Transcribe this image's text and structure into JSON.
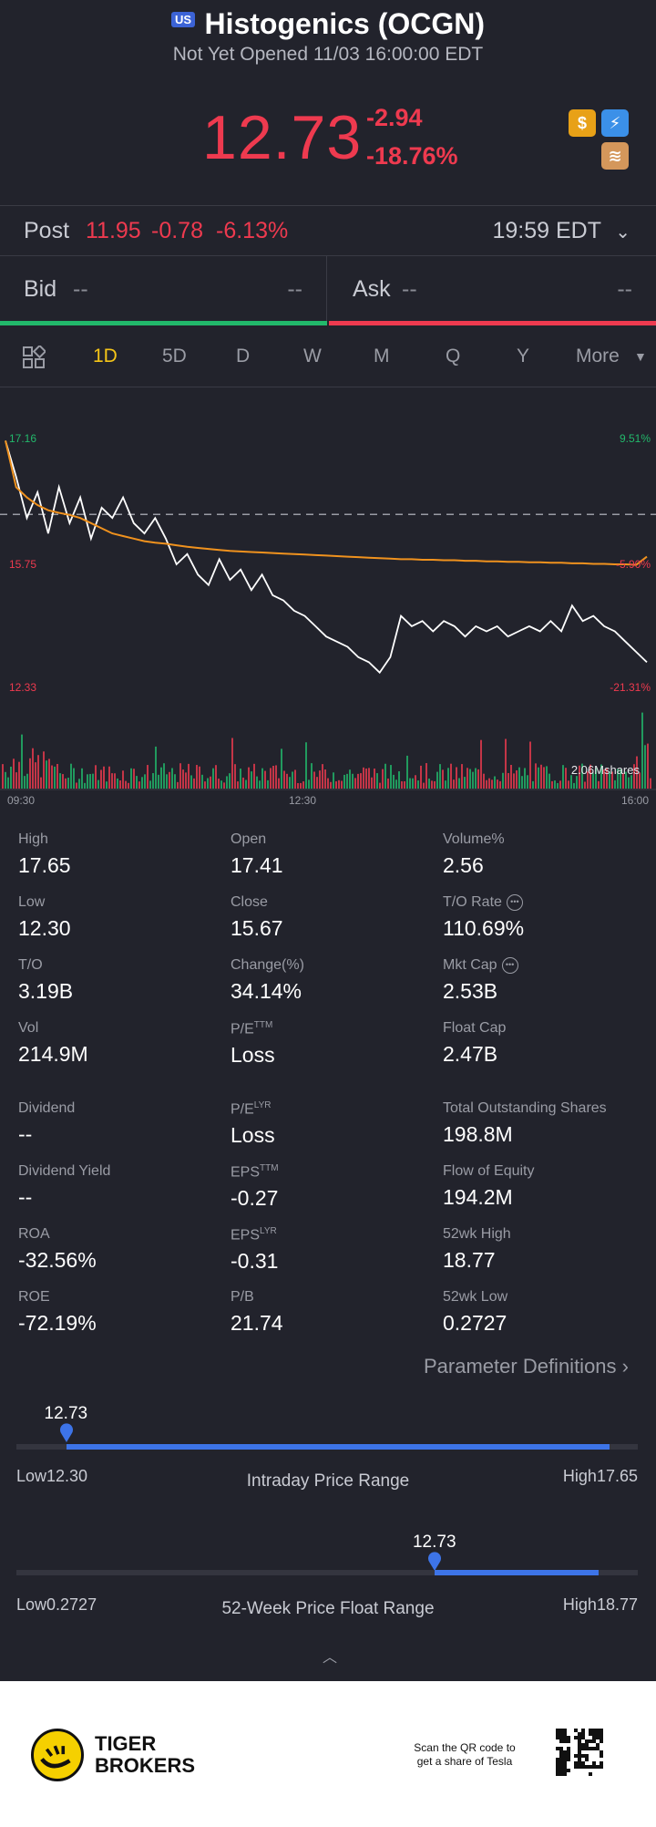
{
  "header": {
    "market_badge": "US",
    "title": "Histogenics (OCGN)",
    "status": "Not Yet Opened 11/03 16:00:00 EDT",
    "price": "12.73",
    "change": "-2.94",
    "change_pct": "-18.76%",
    "colors": {
      "down": "#ee3a4f",
      "up": "#22b86b",
      "accent": "#f5c518"
    }
  },
  "post": {
    "label": "Post",
    "price": "11.95",
    "change": "-0.78",
    "change_pct": "-6.13%",
    "time": "19:59 EDT"
  },
  "bid": {
    "label": "Bid",
    "left": "--",
    "right": "--"
  },
  "ask": {
    "label": "Ask",
    "left": "--",
    "right": "--"
  },
  "tabs": [
    {
      "label": "1D",
      "active": true
    },
    {
      "label": "5D"
    },
    {
      "label": "D"
    },
    {
      "label": "W"
    },
    {
      "label": "M"
    },
    {
      "label": "Q"
    },
    {
      "label": "Y"
    },
    {
      "label": "More"
    }
  ],
  "chart_data": {
    "type": "line",
    "price_high_label": "17.16",
    "price_mid_label": "15.75",
    "price_low_label": "12.33",
    "pct_high_label": "9.51%",
    "pct_mid_label": "-5.90%",
    "pct_low_label": "-21.31%",
    "volume_label": "2.06Mshares",
    "x_ticks": [
      "09:30",
      "12:30",
      "16:00"
    ],
    "prev_close": 15.67,
    "ylim": [
      12.33,
      17.16
    ],
    "series": [
      {
        "values": [
          17.1,
          16.4,
          15.6,
          16.1,
          15.3,
          16.2,
          15.5,
          16.0,
          15.2,
          15.8,
          15.6,
          16.0,
          15.5,
          15.3,
          15.6,
          15.2,
          14.7,
          14.9,
          14.5,
          14.3,
          14.8,
          14.4,
          14.6,
          14.2,
          14.5,
          14.1,
          14.0,
          13.8,
          13.7,
          13.5,
          13.3,
          13.2,
          13.1,
          12.9,
          12.8,
          12.6,
          12.9,
          13.7,
          13.5,
          13.6,
          13.4,
          13.6,
          13.5,
          13.3,
          13.5,
          13.4,
          13.5,
          13.3,
          13.4,
          13.5,
          13.4,
          13.6,
          13.4,
          13.9,
          13.6,
          13.7,
          13.5,
          13.4,
          13.2,
          13.0,
          12.8
        ]
      },
      {
        "values": [
          17.1,
          16.2,
          16.0,
          15.85,
          15.75,
          15.7,
          15.66,
          15.6,
          15.5,
          15.4,
          15.3,
          15.25,
          15.2,
          15.15,
          15.12,
          15.1,
          15.07,
          15.04,
          15.02,
          15.0,
          14.98,
          14.96,
          14.95,
          14.94,
          14.93,
          14.92,
          14.91,
          14.9,
          14.89,
          14.88,
          14.87,
          14.86,
          14.85,
          14.84,
          14.83,
          14.82,
          14.81,
          14.8,
          14.8,
          14.79,
          14.79,
          14.78,
          14.78,
          14.77,
          14.77,
          14.76,
          14.76,
          14.75,
          14.75,
          14.74,
          14.74,
          14.73,
          14.73,
          14.72,
          14.72,
          14.71,
          14.71,
          14.7,
          14.7,
          14.69,
          14.85
        ]
      }
    ]
  },
  "stats": {
    "high": {
      "label": "High",
      "value": "17.65"
    },
    "open": {
      "label": "Open",
      "value": "17.41"
    },
    "volume_pct": {
      "label": "Volume%",
      "value": "2.56"
    },
    "low": {
      "label": "Low",
      "value": "12.30"
    },
    "close": {
      "label": "Close",
      "value": "15.67"
    },
    "to_rate": {
      "label": "T/O Rate",
      "value": "110.69%"
    },
    "to": {
      "label": "T/O",
      "value": "3.19B"
    },
    "change": {
      "label": "Change(%)",
      "value": "34.14%"
    },
    "mkt_cap": {
      "label": "Mkt Cap",
      "value": "2.53B"
    },
    "vol": {
      "label": "Vol",
      "value": "214.9M"
    },
    "pe_ttm": {
      "label": "P/E",
      "sup": "TTM",
      "value": "Loss"
    },
    "float_cap": {
      "label": "Float Cap",
      "value": "2.47B"
    },
    "dividend": {
      "label": "Dividend",
      "value": "--"
    },
    "pe_lyr": {
      "label": "P/E",
      "sup": "LYR",
      "value": "Loss"
    },
    "total_shares": {
      "label": "Total Outstanding Shares",
      "value": "198.8M"
    },
    "div_yield": {
      "label": "Dividend Yield",
      "value": "--"
    },
    "eps_ttm": {
      "label": "EPS",
      "sup": "TTM",
      "value": "-0.27"
    },
    "flow_equity": {
      "label": "Flow of Equity",
      "value": "194.2M"
    },
    "roa": {
      "label": "ROA",
      "value": "-32.56%"
    },
    "eps_lyr": {
      "label": "EPS",
      "sup": "LYR",
      "value": "-0.31"
    },
    "wk52_high": {
      "label": "52wk High",
      "value": "18.77"
    },
    "roe": {
      "label": "ROE",
      "value": "-72.19%"
    },
    "pb": {
      "label": "P/B",
      "value": "21.74"
    },
    "wk52_low": {
      "label": "52wk Low",
      "value": "0.2727"
    }
  },
  "param_def": "Parameter Definitions",
  "intraday_range": {
    "title": "Intraday Price Range",
    "current": "12.73",
    "low": "Low12.30",
    "high": "High17.65",
    "position": 0.08
  },
  "week52_range": {
    "title": "52-Week Price Float Range",
    "current": "12.73",
    "low": "Low0.2727",
    "high": "High18.77",
    "position": 0.673
  },
  "footer": {
    "brand_line1": "TIGER",
    "brand_line2": "BROKERS",
    "qr_line1": "Scan the QR code to",
    "qr_line2": "get a share of Tesla"
  }
}
